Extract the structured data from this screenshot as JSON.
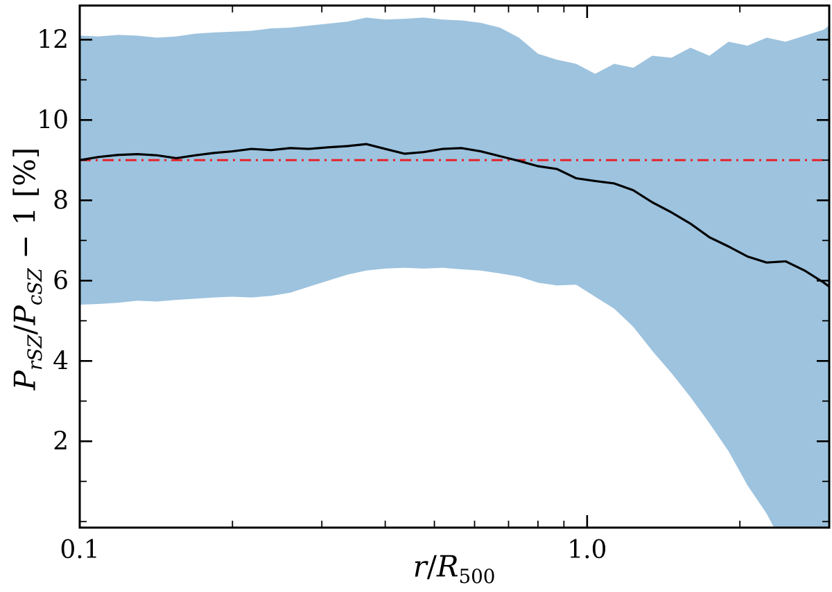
{
  "figure": {
    "background": "#ffffff",
    "band_color": "#9dc3de",
    "median_color": "#000000",
    "reference_color": "#e8212a",
    "frame_color": "#000000",
    "tick_label_color": "#000000"
  },
  "chart_data": {
    "type": "area",
    "title": "",
    "xlabel": "r/R_500",
    "ylabel": "P_rSZ / P_cSZ - 1 [%]",
    "xlabel_parts": [
      {
        "text": "r",
        "italic": true
      },
      {
        "text": "/",
        "italic": false
      },
      {
        "text": "R",
        "italic": true
      },
      {
        "sub": "500",
        "italic": false
      }
    ],
    "ylabel_parts": [
      {
        "text": "P",
        "italic": true
      },
      {
        "sub": "rSZ",
        "italic": true
      },
      {
        "text": "/",
        "italic": false
      },
      {
        "text": "P",
        "italic": true
      },
      {
        "sub": "cSZ",
        "italic": true
      },
      {
        "text": " − 1 [%]",
        "italic": false
      }
    ],
    "xscale": "log",
    "yscale": "linear",
    "xlim": [
      0.1,
      3.0
    ],
    "ylim": [
      -0.15,
      12.85
    ],
    "grid": false,
    "legend": "none",
    "xticks": {
      "major": [
        0.1,
        1.0
      ],
      "major_labels": [
        "0.1",
        "1.0"
      ],
      "minor": [
        0.2,
        0.3,
        0.4,
        0.5,
        0.6,
        0.7,
        0.8,
        0.9,
        2.0,
        3.0
      ]
    },
    "yticks": {
      "major": [
        2,
        4,
        6,
        8,
        10,
        12
      ],
      "major_labels": [
        "2",
        "4",
        "6",
        "8",
        "10",
        "12"
      ],
      "minor": [
        0,
        1,
        3,
        5,
        7,
        9,
        11
      ]
    },
    "reference_line": {
      "y": 9.0,
      "style": "dashdot",
      "color": "#e8212a"
    },
    "x": [
      0.1,
      0.109,
      0.119,
      0.13,
      0.142,
      0.155,
      0.169,
      0.184,
      0.2,
      0.218,
      0.238,
      0.26,
      0.283,
      0.309,
      0.337,
      0.367,
      0.4,
      0.437,
      0.476,
      0.519,
      0.566,
      0.617,
      0.673,
      0.734,
      0.8,
      0.872,
      0.951,
      1.037,
      1.131,
      1.233,
      1.344,
      1.466,
      1.598,
      1.742,
      1.9,
      2.071,
      2.258,
      2.462,
      2.684,
      2.927,
      3.0
    ],
    "series": [
      {
        "name": "median",
        "values": [
          9.0,
          9.08,
          9.13,
          9.15,
          9.12,
          9.05,
          9.12,
          9.18,
          9.22,
          9.28,
          9.25,
          9.3,
          9.28,
          9.32,
          9.35,
          9.4,
          9.28,
          9.16,
          9.2,
          9.28,
          9.3,
          9.22,
          9.1,
          8.98,
          8.85,
          8.78,
          8.55,
          8.48,
          8.42,
          8.25,
          7.95,
          7.7,
          7.42,
          7.08,
          6.85,
          6.6,
          6.45,
          6.48,
          6.25,
          5.95,
          5.85
        ]
      },
      {
        "name": "band_upper",
        "values": [
          12.1,
          12.08,
          12.12,
          12.1,
          12.05,
          12.08,
          12.15,
          12.18,
          12.2,
          12.22,
          12.28,
          12.3,
          12.35,
          12.4,
          12.45,
          12.55,
          12.5,
          12.52,
          12.55,
          12.5,
          12.48,
          12.42,
          12.3,
          12.05,
          11.65,
          11.5,
          11.4,
          11.15,
          11.4,
          11.3,
          11.6,
          11.55,
          11.8,
          11.6,
          11.95,
          11.85,
          12.05,
          11.95,
          12.1,
          12.25,
          12.35
        ]
      },
      {
        "name": "band_lower",
        "values": [
          5.4,
          5.42,
          5.45,
          5.5,
          5.48,
          5.52,
          5.55,
          5.58,
          5.6,
          5.58,
          5.62,
          5.7,
          5.85,
          6.0,
          6.15,
          6.25,
          6.3,
          6.32,
          6.3,
          6.32,
          6.28,
          6.25,
          6.18,
          6.1,
          5.95,
          5.88,
          5.9,
          5.6,
          5.3,
          4.85,
          4.25,
          3.7,
          3.1,
          2.45,
          1.75,
          0.9,
          0.2,
          -0.7,
          -1.5,
          -2.2,
          -2.4
        ]
      }
    ]
  }
}
